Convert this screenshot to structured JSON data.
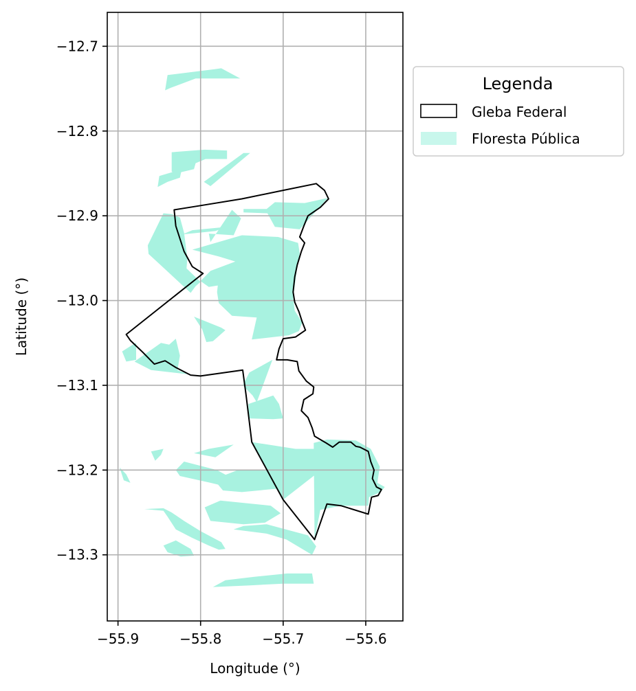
{
  "axes": {
    "xlabel": "Longitude (°)",
    "ylabel": "Latitude (°)",
    "xlim": [
      -55.913,
      -55.555
    ],
    "ylim": [
      -13.378,
      -12.66
    ],
    "xticks": [
      -55.9,
      -55.8,
      -55.7,
      -55.6
    ],
    "xtick_labels": [
      "−55.9",
      "−55.8",
      "−55.7",
      "−55.6"
    ],
    "yticks": [
      -12.7,
      -12.8,
      -12.9,
      -13.0,
      -13.1,
      -13.2,
      -13.3
    ],
    "ytick_labels": [
      "−12.7",
      "−12.8",
      "−12.9",
      "−13.0",
      "−13.1",
      "−13.2",
      "−13.3"
    ],
    "grid": true
  },
  "legend": {
    "title": "Legenda",
    "placement": "outside right, top",
    "items": [
      {
        "label": "Gleba Federal",
        "style": "outline",
        "color": "#000000"
      },
      {
        "label": "Floresta Pública",
        "style": "fill",
        "color": "#a8f2e0"
      }
    ]
  },
  "colors": {
    "forest": "#a8f2e0",
    "boundary": "#000000",
    "grid": "#b0b0b0"
  },
  "layers": {
    "gleba_federal": [
      [
        -55.66,
        -12.862
      ],
      [
        -55.65,
        -12.87
      ],
      [
        -55.645,
        -12.88
      ],
      [
        -55.655,
        -12.89
      ],
      [
        -55.67,
        -12.9
      ],
      [
        -55.675,
        -12.912
      ],
      [
        -55.68,
        -12.925
      ],
      [
        -55.674,
        -12.932
      ],
      [
        -55.678,
        -12.942
      ],
      [
        -55.683,
        -12.958
      ],
      [
        -55.686,
        -12.972
      ],
      [
        -55.688,
        -12.99
      ],
      [
        -55.686,
        -13.002
      ],
      [
        -55.681,
        -13.013
      ],
      [
        -55.677,
        -13.025
      ],
      [
        -55.673,
        -13.035
      ],
      [
        -55.685,
        -13.043
      ],
      [
        -55.7,
        -13.045
      ],
      [
        -55.705,
        -13.057
      ],
      [
        -55.708,
        -13.07
      ],
      [
        -55.695,
        -13.07
      ],
      [
        -55.683,
        -13.072
      ],
      [
        -55.681,
        -13.083
      ],
      [
        -55.672,
        -13.095
      ],
      [
        -55.663,
        -13.102
      ],
      [
        -55.664,
        -13.11
      ],
      [
        -55.675,
        -13.117
      ],
      [
        -55.678,
        -13.13
      ],
      [
        -55.67,
        -13.138
      ],
      [
        -55.665,
        -13.15
      ],
      [
        -55.662,
        -13.16
      ],
      [
        -55.648,
        -13.168
      ],
      [
        -55.64,
        -13.173
      ],
      [
        -55.632,
        -13.167
      ],
      [
        -55.618,
        -13.167
      ],
      [
        -55.612,
        -13.172
      ],
      [
        -55.607,
        -13.173
      ],
      [
        -55.597,
        -13.178
      ],
      [
        -55.594,
        -13.19
      ],
      [
        -55.59,
        -13.2
      ],
      [
        -55.592,
        -13.21
      ],
      [
        -55.587,
        -13.22
      ],
      [
        -55.581,
        -13.223
      ],
      [
        -55.585,
        -13.23
      ],
      [
        -55.593,
        -13.232
      ],
      [
        -55.595,
        -13.242
      ],
      [
        -55.597,
        -13.252
      ],
      [
        -55.63,
        -13.242
      ],
      [
        -55.647,
        -13.24
      ],
      [
        -55.662,
        -13.282
      ],
      [
        -55.7,
        -13.235
      ],
      [
        -55.738,
        -13.167
      ],
      [
        -55.745,
        -13.111
      ],
      [
        -55.749,
        -13.082
      ],
      [
        -55.8,
        -13.089
      ],
      [
        -55.812,
        -13.088
      ],
      [
        -55.83,
        -13.079
      ],
      [
        -55.843,
        -13.071
      ],
      [
        -55.856,
        -13.075
      ],
      [
        -55.87,
        -13.061
      ],
      [
        -55.885,
        -13.047
      ],
      [
        -55.89,
        -13.04
      ],
      [
        -55.797,
        -12.968
      ],
      [
        -55.81,
        -12.96
      ],
      [
        -55.82,
        -12.942
      ],
      [
        -55.83,
        -12.912
      ],
      [
        -55.832,
        -12.893
      ],
      [
        -55.8,
        -12.888
      ],
      [
        -55.75,
        -12.88
      ],
      [
        -55.7,
        -12.87
      ],
      [
        -55.66,
        -12.862
      ]
    ],
    "floresta_publica": [
      [
        [
          -55.84,
          -12.734
        ],
        [
          -55.783,
          -12.727
        ],
        [
          -55.775,
          -12.726
        ],
        [
          -55.752,
          -12.738
        ],
        [
          -55.806,
          -12.738
        ],
        [
          -55.836,
          -12.749
        ],
        [
          -55.843,
          -12.752
        ]
      ],
      [
        [
          -55.835,
          -12.825
        ],
        [
          -55.795,
          -12.822
        ],
        [
          -55.768,
          -12.823
        ],
        [
          -55.768,
          -12.833
        ],
        [
          -55.794,
          -12.833
        ],
        [
          -55.806,
          -12.838
        ],
        [
          -55.808,
          -12.845
        ],
        [
          -55.83,
          -12.85
        ],
        [
          -55.835,
          -12.848
        ]
      ],
      [
        [
          -55.748,
          -12.826
        ],
        [
          -55.74,
          -12.826
        ],
        [
          -55.788,
          -12.865
        ],
        [
          -55.796,
          -12.86
        ]
      ],
      [
        [
          -55.85,
          -12.853
        ],
        [
          -55.836,
          -12.849
        ],
        [
          -55.823,
          -12.846
        ],
        [
          -55.825,
          -12.855
        ],
        [
          -55.84,
          -12.86
        ],
        [
          -55.852,
          -12.866
        ]
      ],
      [
        [
          -55.646,
          -12.879
        ],
        [
          -55.674,
          -12.885
        ],
        [
          -55.71,
          -12.884
        ],
        [
          -55.72,
          -12.892
        ],
        [
          -55.748,
          -12.892
        ],
        [
          -55.748,
          -12.896
        ],
        [
          -55.719,
          -12.897
        ],
        [
          -55.71,
          -12.913
        ],
        [
          -55.68,
          -12.916
        ]
      ],
      [
        [
          -55.845,
          -12.897
        ],
        [
          -55.835,
          -12.898
        ],
        [
          -55.825,
          -12.902
        ],
        [
          -55.82,
          -12.92
        ],
        [
          -55.816,
          -12.95
        ],
        [
          -55.817,
          -12.962
        ],
        [
          -55.8,
          -12.978
        ],
        [
          -55.806,
          -12.983
        ],
        [
          -55.812,
          -12.991
        ],
        [
          -55.863,
          -12.945
        ],
        [
          -55.864,
          -12.935
        ]
      ],
      [
        [
          -55.81,
          -12.917
        ],
        [
          -55.768,
          -12.913
        ],
        [
          -55.782,
          -12.918
        ],
        [
          -55.822,
          -12.922
        ]
      ],
      [
        [
          -55.762,
          -12.893
        ],
        [
          -55.751,
          -12.903
        ],
        [
          -55.76,
          -12.923
        ],
        [
          -55.79,
          -12.921
        ],
        [
          -55.788,
          -12.931
        ]
      ],
      [
        [
          -55.75,
          -12.923
        ],
        [
          -55.706,
          -12.925
        ],
        [
          -55.682,
          -12.932
        ],
        [
          -55.68,
          -12.944
        ],
        [
          -55.683,
          -12.96
        ],
        [
          -55.688,
          -12.997
        ],
        [
          -55.686,
          -13.012
        ],
        [
          -55.677,
          -13.026
        ],
        [
          -55.681,
          -13.036
        ],
        [
          -55.693,
          -13.041
        ],
        [
          -55.738,
          -13.046
        ],
        [
          -55.732,
          -13.02
        ],
        [
          -55.762,
          -13.018
        ],
        [
          -55.778,
          -13.003
        ],
        [
          -55.78,
          -12.99
        ],
        [
          -55.778,
          -12.972
        ],
        [
          -55.768,
          -12.971
        ],
        [
          -55.765,
          -12.98
        ],
        [
          -55.79,
          -12.984
        ],
        [
          -55.8,
          -12.977
        ],
        [
          -55.788,
          -12.965
        ],
        [
          -55.758,
          -12.954
        ],
        [
          -55.778,
          -12.948
        ],
        [
          -55.81,
          -12.94
        ]
      ],
      [
        [
          -55.808,
          -13.019
        ],
        [
          -55.775,
          -13.032
        ],
        [
          -55.77,
          -13.035
        ],
        [
          -55.785,
          -13.048
        ],
        [
          -55.793,
          -13.049
        ],
        [
          -55.798,
          -13.034
        ]
      ],
      [
        [
          -55.848,
          -13.05
        ],
        [
          -55.838,
          -13.052
        ],
        [
          -55.83,
          -13.045
        ],
        [
          -55.825,
          -13.065
        ],
        [
          -55.828,
          -13.082
        ],
        [
          -55.815,
          -13.087
        ],
        [
          -55.86,
          -13.082
        ],
        [
          -55.88,
          -13.072
        ]
      ],
      [
        [
          -55.882,
          -13.052
        ],
        [
          -55.895,
          -13.06
        ],
        [
          -55.89,
          -13.072
        ],
        [
          -55.878,
          -13.07
        ],
        [
          -55.878,
          -13.05
        ]
      ],
      [
        [
          -55.713,
          -13.07
        ],
        [
          -55.741,
          -13.085
        ],
        [
          -55.749,
          -13.1
        ],
        [
          -55.737,
          -13.112
        ],
        [
          -55.732,
          -13.12
        ]
      ],
      [
        [
          -55.742,
          -13.122
        ],
        [
          -55.742,
          -13.139
        ],
        [
          -55.712,
          -13.14
        ],
        [
          -55.7,
          -13.139
        ],
        [
          -55.705,
          -13.122
        ],
        [
          -55.712,
          -13.112
        ]
      ],
      [
        [
          -55.738,
          -13.167
        ],
        [
          -55.705,
          -13.172
        ],
        [
          -55.685,
          -13.175
        ],
        [
          -55.66,
          -13.175
        ],
        [
          -55.65,
          -13.197
        ],
        [
          -55.7,
          -13.235
        ]
      ],
      [
        [
          -55.663,
          -13.168
        ],
        [
          -55.647,
          -13.164
        ],
        [
          -55.612,
          -13.165
        ],
        [
          -55.594,
          -13.175
        ],
        [
          -55.583,
          -13.196
        ],
        [
          -55.586,
          -13.215
        ],
        [
          -55.577,
          -13.22
        ],
        [
          -55.582,
          -13.226
        ],
        [
          -55.596,
          -13.232
        ],
        [
          -55.597,
          -13.242
        ],
        [
          -55.63,
          -13.242
        ],
        [
          -55.655,
          -13.247
        ],
        [
          -55.662,
          -13.282
        ]
      ],
      [
        [
          -55.86,
          -13.178
        ],
        [
          -55.845,
          -13.175
        ],
        [
          -55.848,
          -13.182
        ],
        [
          -55.855,
          -13.189
        ]
      ],
      [
        [
          -55.79,
          -13.175
        ],
        [
          -55.76,
          -13.17
        ],
        [
          -55.782,
          -13.185
        ],
        [
          -55.808,
          -13.18
        ]
      ],
      [
        [
          -55.82,
          -13.19
        ],
        [
          -55.78,
          -13.2
        ],
        [
          -55.752,
          -13.215
        ],
        [
          -55.745,
          -13.225
        ],
        [
          -55.788,
          -13.215
        ],
        [
          -55.825,
          -13.207
        ],
        [
          -55.83,
          -13.2
        ]
      ],
      [
        [
          -55.898,
          -13.197
        ],
        [
          -55.89,
          -13.205
        ],
        [
          -55.885,
          -13.215
        ],
        [
          -55.893,
          -13.212
        ]
      ],
      [
        [
          -55.755,
          -13.2
        ],
        [
          -55.702,
          -13.201
        ],
        [
          -55.68,
          -13.207
        ],
        [
          -55.708,
          -13.222
        ],
        [
          -55.75,
          -13.226
        ],
        [
          -55.773,
          -13.224
        ],
        [
          -55.784,
          -13.211
        ]
      ],
      [
        [
          -55.776,
          -13.236
        ],
        [
          -55.715,
          -13.242
        ],
        [
          -55.703,
          -13.251
        ],
        [
          -55.722,
          -13.262
        ],
        [
          -55.748,
          -13.264
        ],
        [
          -55.788,
          -13.26
        ],
        [
          -55.795,
          -13.244
        ]
      ],
      [
        [
          -55.868,
          -13.246
        ],
        [
          -55.845,
          -13.248
        ],
        [
          -55.84,
          -13.255
        ],
        [
          -55.83,
          -13.27
        ],
        [
          -55.81,
          -13.28
        ],
        [
          -55.79,
          -13.289
        ],
        [
          -55.778,
          -13.294
        ],
        [
          -55.77,
          -13.293
        ],
        [
          -55.775,
          -13.285
        ],
        [
          -55.8,
          -13.272
        ],
        [
          -55.82,
          -13.26
        ],
        [
          -55.835,
          -13.25
        ],
        [
          -55.845,
          -13.245
        ]
      ],
      [
        [
          -55.83,
          -13.283
        ],
        [
          -55.812,
          -13.293
        ],
        [
          -55.808,
          -13.301
        ],
        [
          -55.824,
          -13.302
        ],
        [
          -55.84,
          -13.297
        ],
        [
          -55.845,
          -13.289
        ]
      ],
      [
        [
          -55.76,
          -13.27
        ],
        [
          -55.72,
          -13.275
        ],
        [
          -55.696,
          -13.282
        ],
        [
          -55.665,
          -13.3
        ],
        [
          -55.66,
          -13.29
        ],
        [
          -55.67,
          -13.277
        ],
        [
          -55.72,
          -13.264
        ],
        [
          -55.748,
          -13.266
        ]
      ],
      [
        [
          -55.785,
          -13.338
        ],
        [
          -55.77,
          -13.33
        ],
        [
          -55.735,
          -13.326
        ],
        [
          -55.695,
          -13.322
        ],
        [
          -55.665,
          -13.322
        ],
        [
          -55.663,
          -13.334
        ],
        [
          -55.7,
          -13.334
        ],
        [
          -55.74,
          -13.336
        ]
      ]
    ]
  }
}
